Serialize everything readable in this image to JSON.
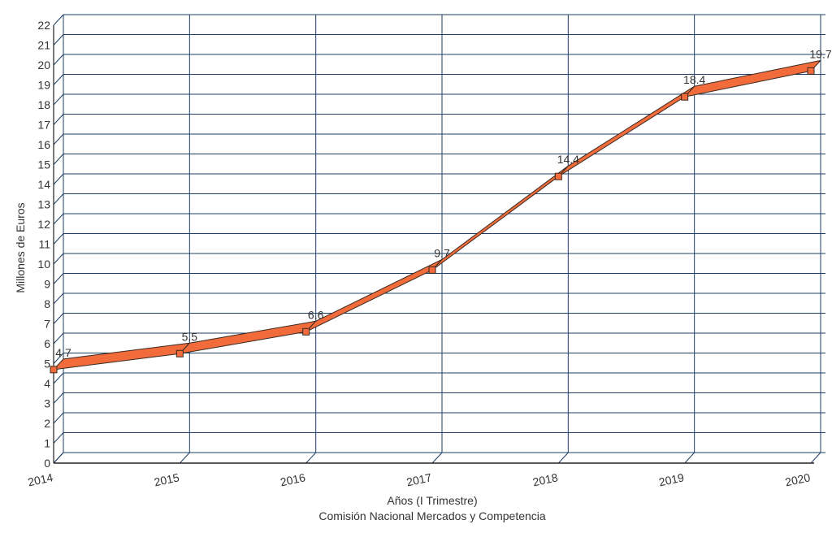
{
  "chart_data": {
    "type": "line",
    "title": "",
    "xlabel": "Años (I Trimestre)",
    "ylabel": "Millones de Euros",
    "source": "Comisión Nacional Mercados y Competencia",
    "categories": [
      "2014",
      "2015",
      "2016",
      "2017",
      "2018",
      "2019",
      "2020"
    ],
    "series": [
      {
        "values": [
          4.7,
          5.5,
          6.6,
          9.7,
          14.4,
          18.4,
          19.7
        ],
        "data_labels": [
          "4.7",
          "5.5",
          "6.6",
          "9.7",
          "14.4",
          "18.4",
          "19.7"
        ]
      }
    ],
    "ylim": [
      0,
      22
    ],
    "yticks": [
      0,
      1,
      2,
      3,
      4,
      5,
      6,
      7,
      8,
      9,
      10,
      11,
      12,
      13,
      14,
      15,
      16,
      17,
      18,
      19,
      20,
      21,
      22
    ],
    "grid": true,
    "legend": "none",
    "colors": {
      "line_fill": "#f26b3a",
      "line_stroke": "#3a2a20",
      "marker_fill": "#f26b3a",
      "grid": "#1f3f66",
      "text": "#333333"
    }
  }
}
